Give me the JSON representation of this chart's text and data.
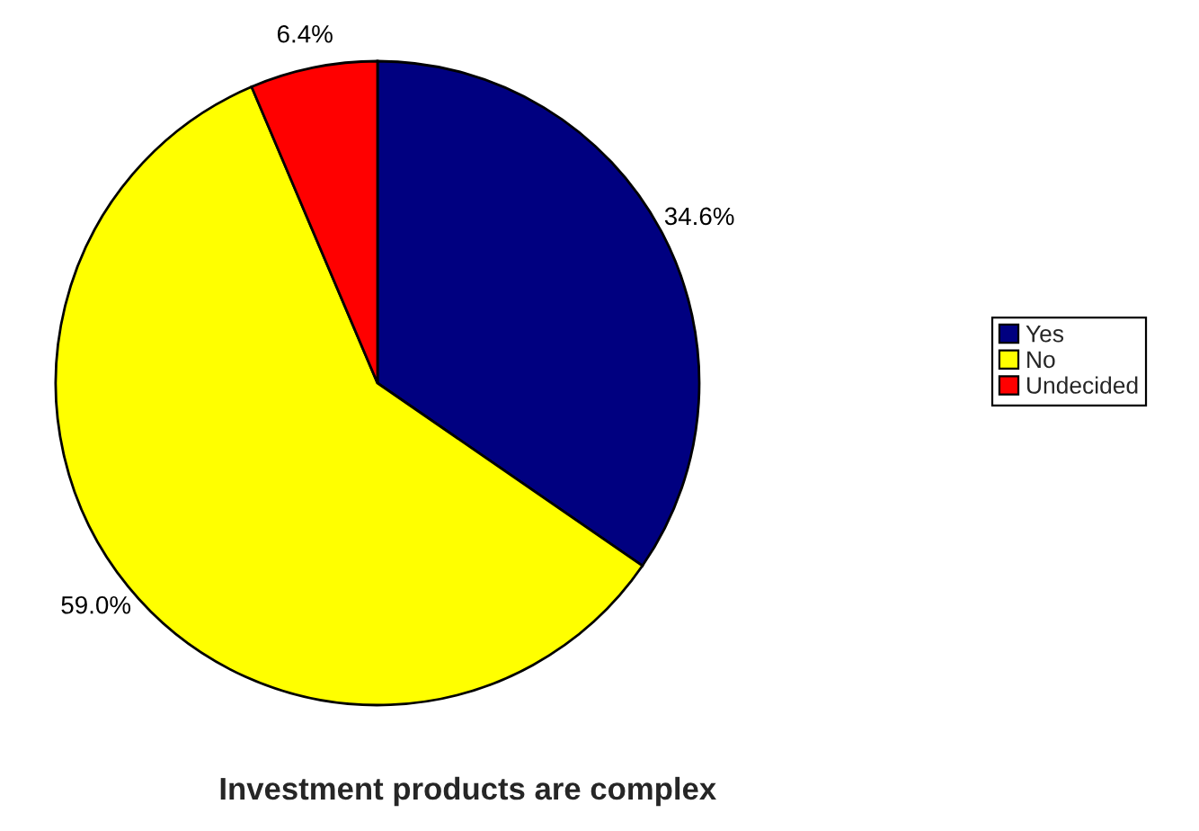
{
  "chart_data": {
    "type": "pie",
    "title": "Investment products are complex",
    "categories": [
      "Yes",
      "No",
      "Undecided"
    ],
    "values": [
      34.6,
      59.0,
      6.4
    ],
    "colors": [
      "#000080",
      "#ffff00",
      "#ff0000"
    ],
    "value_labels": [
      "34.6%",
      "59.0%",
      "6.4%"
    ],
    "legend": "right"
  }
}
